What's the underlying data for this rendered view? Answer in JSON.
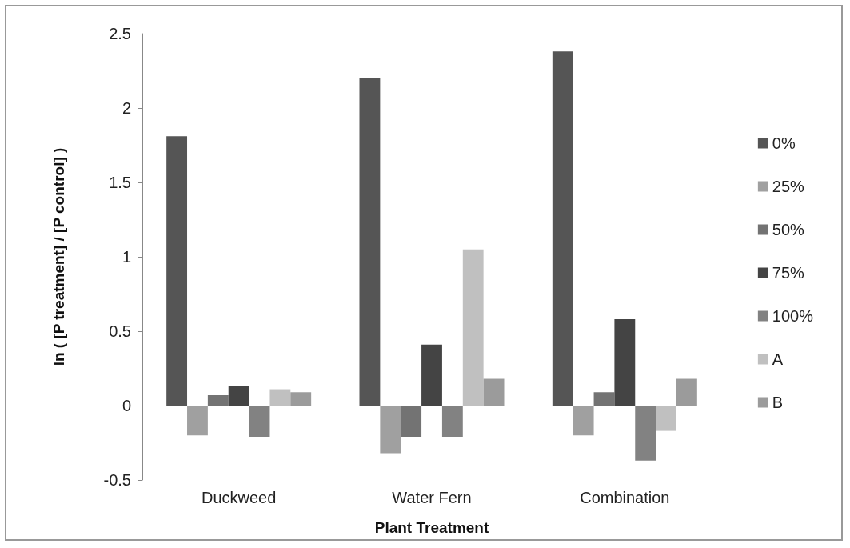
{
  "chart_data": {
    "type": "bar",
    "xlabel": "Plant Treatment",
    "ylabel": "ln ( [P treatment] / [P control] )",
    "categories": [
      "Duckweed",
      "Water Fern",
      "Combination"
    ],
    "series": [
      {
        "name": "0%",
        "color": "#555555",
        "values": [
          1.81,
          2.2,
          2.38
        ]
      },
      {
        "name": "25%",
        "color": "#a0a0a0",
        "values": [
          -0.2,
          -0.32,
          -0.2
        ]
      },
      {
        "name": "50%",
        "color": "#737373",
        "values": [
          0.07,
          -0.21,
          0.09
        ]
      },
      {
        "name": "75%",
        "color": "#444444",
        "values": [
          0.13,
          0.41,
          0.58
        ]
      },
      {
        "name": "100%",
        "color": "#828282",
        "values": [
          -0.21,
          -0.21,
          -0.37
        ]
      },
      {
        "name": "A",
        "color": "#c0c0c0",
        "values": [
          0.11,
          1.05,
          -0.17
        ]
      },
      {
        "name": "B",
        "color": "#9b9b9b",
        "values": [
          0.09,
          0.18,
          0.18
        ]
      }
    ],
    "ylim": [
      -0.5,
      2.5
    ],
    "yticks": [
      -0.5,
      0,
      0.5,
      1,
      1.5,
      2,
      2.5
    ],
    "legend": "right"
  }
}
